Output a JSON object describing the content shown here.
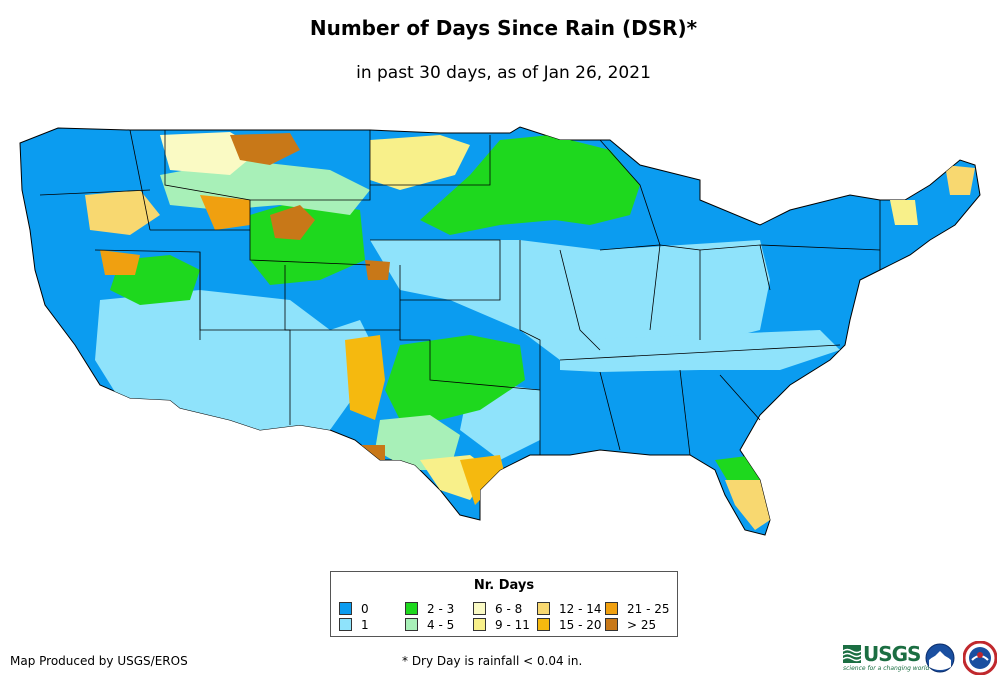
{
  "header": {
    "title": "Number of Days Since Rain (DSR)*",
    "subtitle": "in past 30 days, as of Jan 26, 2021"
  },
  "legend": {
    "title": "Nr. Days",
    "items": [
      {
        "label": "0",
        "color": "#0b9cf0"
      },
      {
        "label": "1",
        "color": "#8fe3fb"
      },
      {
        "label": "2 - 3",
        "color": "#1ed81e"
      },
      {
        "label": "4 - 5",
        "color": "#a8f0b8"
      },
      {
        "label": "6 - 8",
        "color": "#fafac4"
      },
      {
        "label": "9 - 11",
        "color": "#f8f08a"
      },
      {
        "label": "12 - 14",
        "color": "#f8d870"
      },
      {
        "label": "15 - 20",
        "color": "#f5b90f"
      },
      {
        "label": "21 - 25",
        "color": "#f0a010"
      },
      {
        "label": "> 25",
        "color": "#c87818"
      }
    ]
  },
  "footer": {
    "credit": "Map Produced by USGS/EROS",
    "footnote": "* Dry Day is rainfall < 0.04 in."
  },
  "logos": {
    "usgs_text": "USGS",
    "usgs_tagline": "science for a changing world",
    "noaa_icon": "noaa-logo-icon",
    "nws_icon": "nws-logo-icon"
  }
}
